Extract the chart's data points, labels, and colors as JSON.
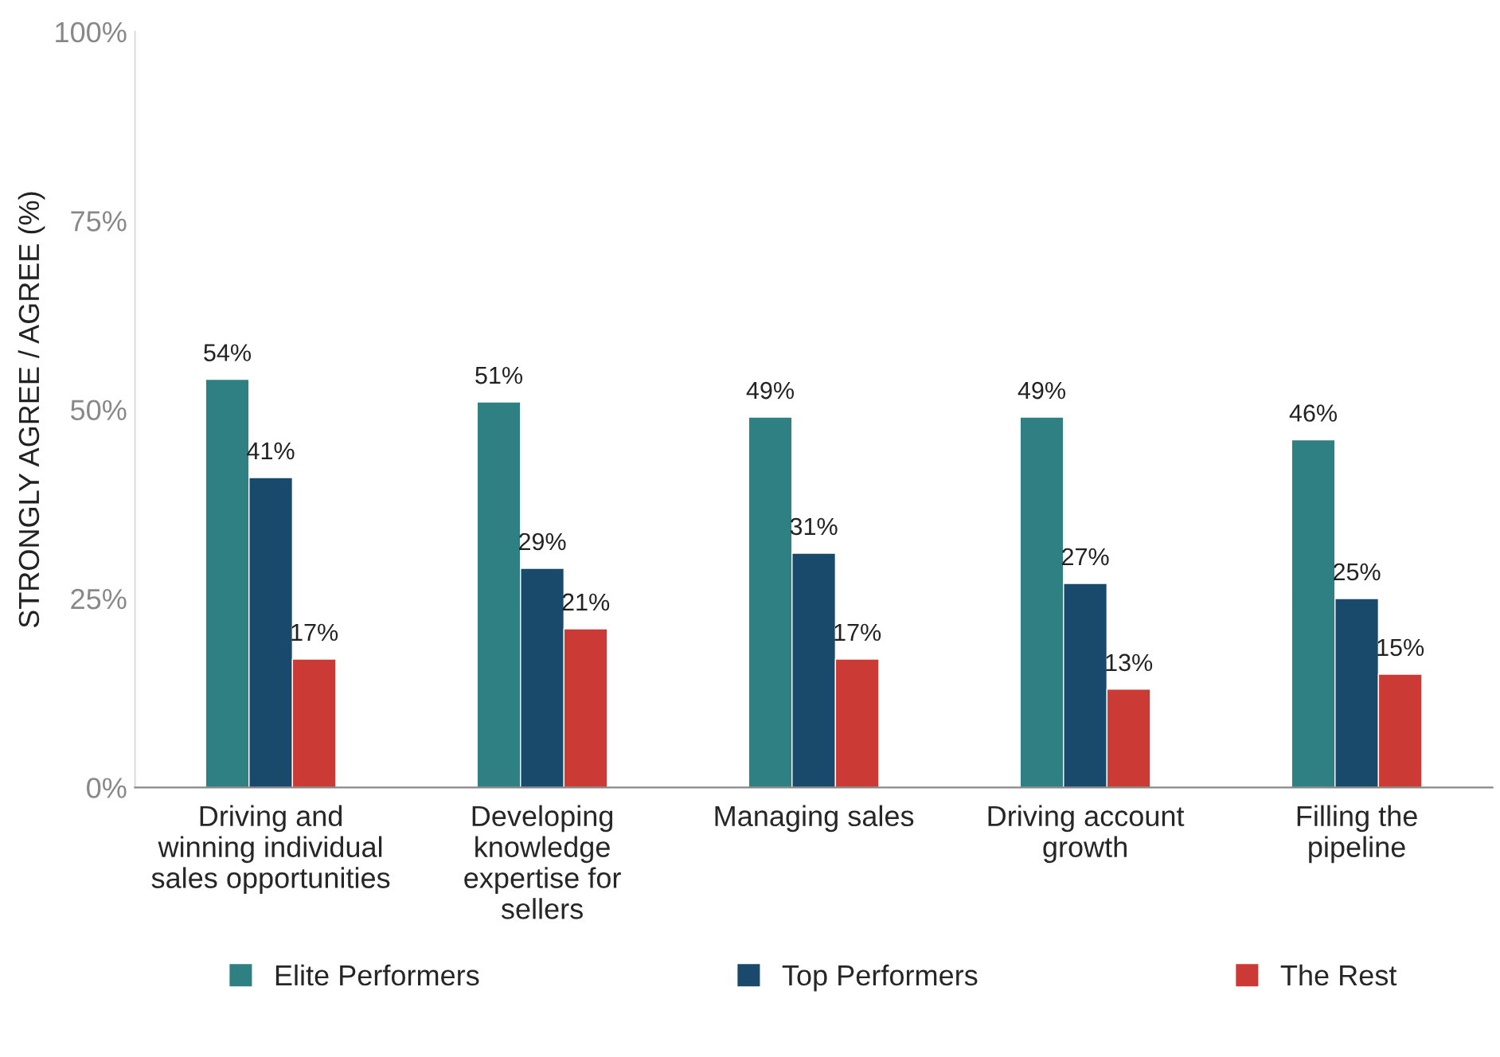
{
  "chart_data": {
    "type": "bar",
    "ylabel": "STRONGLY AGREE / AGREE (%)",
    "categories": [
      "Driving and\nwinning individual\nsales opportunities",
      "Developing\nknowledge\nexpertise for\nsellers",
      "Managing sales",
      "Driving account\ngrowth",
      "Filling the\npipeline"
    ],
    "series": [
      {
        "name": "Elite Performers",
        "color": "#2e8083",
        "values": [
          54,
          51,
          49,
          49,
          46
        ],
        "value_labels": [
          "54%",
          "51%",
          "49%",
          "49%",
          "46%"
        ]
      },
      {
        "name": "Top Performers",
        "color": "#1a4a6b",
        "values": [
          41,
          29,
          31,
          27,
          25
        ],
        "value_labels": [
          "41%",
          "29%",
          "31%",
          "27%",
          "25%"
        ]
      },
      {
        "name": "The Rest",
        "color": "#cc3a35",
        "values": [
          17,
          21,
          17,
          13,
          15
        ],
        "value_labels": [
          "17%",
          "21%",
          "17%",
          "13%",
          "15%"
        ]
      }
    ],
    "ylim": [
      0,
      100
    ],
    "yticks": [
      {
        "value": 0,
        "label": "0%"
      },
      {
        "value": 25,
        "label": "25%"
      },
      {
        "value": 50,
        "label": "50%"
      },
      {
        "value": 75,
        "label": "75%"
      },
      {
        "value": 100,
        "label": "100%"
      }
    ],
    "grid": false,
    "legend": "bottom"
  }
}
